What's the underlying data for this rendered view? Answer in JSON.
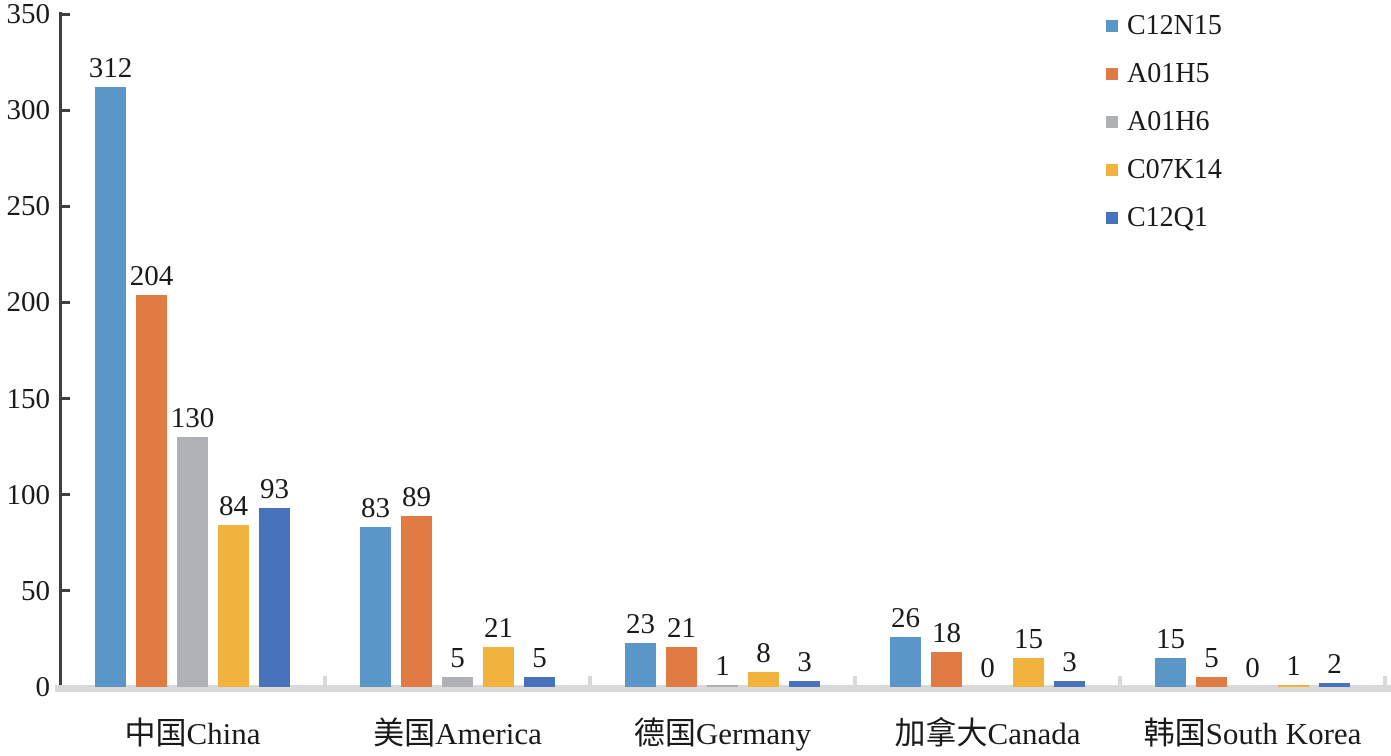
{
  "chart_data": {
    "type": "bar",
    "title": "",
    "xlabel": "",
    "ylabel": "",
    "categories": [
      "中国China",
      "美国America",
      "德国Germany",
      "加拿大Canada",
      "韩国South Korea"
    ],
    "series": [
      {
        "name": "C12N15",
        "color": "#5B96C9",
        "values": [
          312,
          83,
          23,
          26,
          15
        ]
      },
      {
        "name": "A01H5",
        "color": "#E07B44",
        "values": [
          204,
          89,
          21,
          18,
          5
        ]
      },
      {
        "name": "A01H6",
        "color": "#AFB1B5",
        "values": [
          130,
          5,
          1,
          0,
          0
        ]
      },
      {
        "name": "C07K14",
        "color": "#F2B23E",
        "values": [
          84,
          21,
          8,
          15,
          1
        ]
      },
      {
        "name": "C12Q1",
        "color": "#4673BC",
        "values": [
          93,
          5,
          3,
          3,
          2
        ]
      }
    ],
    "ylim": [
      0,
      350
    ],
    "yticks": [
      0,
      50,
      100,
      150,
      200,
      250,
      300,
      350
    ],
    "grid": false,
    "data_labels": true,
    "legend_position": "top-right"
  },
  "colors": {
    "axis": "#3f3f3f",
    "baseline": "#d9d9d9",
    "text": "#1a1a1a",
    "background": "#ffffff"
  }
}
